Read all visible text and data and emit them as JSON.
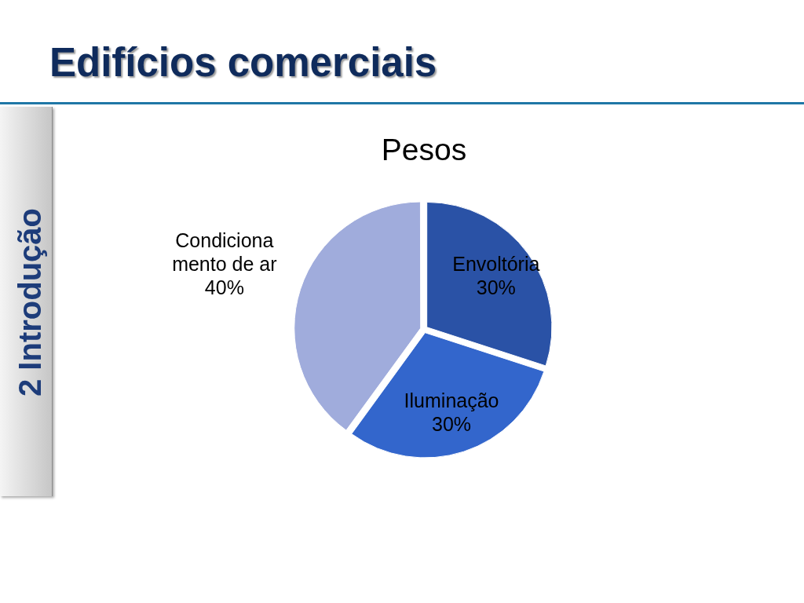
{
  "chart_data": {
    "type": "pie",
    "title": "Edifícios comerciais",
    "subtitle": "Pesos",
    "categories": [
      "Envoltória",
      "Iluminação",
      "Condicionamento de ar"
    ],
    "values": [
      30,
      30,
      40
    ],
    "value_labels": [
      "30%",
      "30%",
      "40%"
    ],
    "colors": [
      "#2a52a6",
      "#3366cc",
      "#a0acdc"
    ],
    "annotations": [
      "2 Introdução"
    ]
  }
}
